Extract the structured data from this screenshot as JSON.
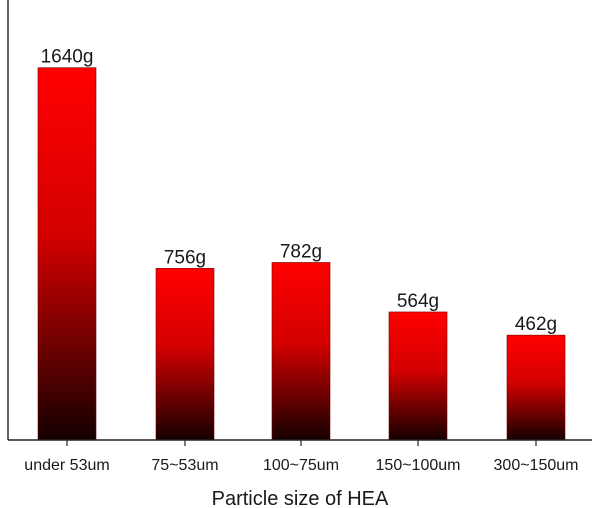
{
  "chart_data": {
    "type": "bar",
    "title": "",
    "xlabel": "Particle size of HEA",
    "ylabel": "",
    "categories": [
      "under 53um",
      "75~53um",
      "100~75um",
      "150~100um",
      "300~150um"
    ],
    "values": [
      1640,
      756,
      782,
      564,
      462
    ],
    "data_labels": [
      "1640g",
      "756g",
      "782g",
      "564g",
      "462g"
    ],
    "ylim": [
      0,
      1850
    ],
    "grid": false,
    "legend": "none",
    "colors": {
      "bar_top": "#ff0000",
      "bar_bottom": "#150000",
      "axis": "#222222",
      "text": "#1a1a1a"
    }
  }
}
